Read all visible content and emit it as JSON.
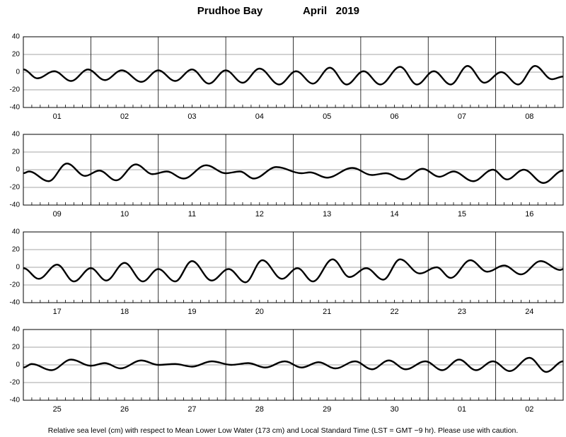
{
  "title_left": "Prudhoe Bay",
  "title_right": "April   2019",
  "note": "Relative sea level (cm) with respect to Mean Lower Low Water (173 cm) and Local Standard Time (LST = GMT −9 hr). Please use with caution.",
  "chart_data": [
    {
      "type": "line",
      "categories": [
        "01",
        "02",
        "03",
        "04",
        "05",
        "06",
        "07",
        "08"
      ],
      "x": [
        0,
        5,
        11,
        17,
        23,
        29,
        35,
        42,
        48,
        54,
        60,
        66,
        72,
        78,
        84,
        91,
        97,
        103,
        109,
        115,
        121,
        127,
        134,
        140,
        146,
        152,
        158,
        164,
        170,
        176,
        182,
        188,
        192
      ],
      "values": [
        3,
        -7,
        1,
        -10,
        3,
        -9,
        2,
        -11,
        2,
        -10,
        3,
        -13,
        2,
        -12,
        4,
        -14,
        1,
        -13,
        5,
        -14,
        1,
        -14,
        6,
        -14,
        1,
        -14,
        7,
        -12,
        0,
        -14,
        7,
        -8,
        -5
      ],
      "xlim": [
        0,
        192
      ],
      "xticks": [
        24,
        48,
        72,
        96,
        120,
        144,
        168
      ],
      "ylim": [
        -40,
        40
      ],
      "yticks": [
        -40,
        -20,
        0,
        20,
        40
      ],
      "grid": true,
      "color": "#000000"
    },
    {
      "type": "line",
      "categories": [
        "09",
        "10",
        "11",
        "12",
        "13",
        "14",
        "15",
        "16"
      ],
      "x": [
        0,
        2,
        9,
        15.5,
        22,
        27,
        33,
        40,
        46,
        51,
        57,
        65,
        72,
        77,
        82,
        90,
        99,
        102,
        108,
        117,
        124,
        129,
        135,
        142,
        148,
        153,
        160,
        167,
        172,
        178,
        185,
        192
      ],
      "values": [
        -4,
        -2,
        -13,
        7,
        -7,
        -1,
        -12,
        6,
        -5,
        -2,
        -10,
        5,
        -4,
        -2,
        -10,
        3,
        -4,
        -3,
        -9,
        2,
        -6,
        -4,
        -11,
        1,
        -8,
        -2,
        -13,
        0,
        -11,
        0,
        -15,
        -1
      ],
      "xlim": [
        0,
        192
      ],
      "xticks": [
        24,
        48,
        72,
        96,
        120,
        144,
        168
      ],
      "ylim": [
        -40,
        40
      ],
      "yticks": [
        -40,
        -20,
        0,
        20,
        40
      ],
      "grid": true,
      "color": "#000000"
    },
    {
      "type": "line",
      "categories": [
        "17",
        "18",
        "19",
        "20",
        "21",
        "22",
        "23",
        "24"
      ],
      "x": [
        0,
        5.5,
        12,
        18,
        24,
        29.5,
        36,
        42.5,
        48,
        54,
        60,
        67,
        73,
        79,
        85,
        92,
        97.5,
        103,
        110,
        116,
        122,
        128,
        134,
        141,
        147,
        152,
        159,
        165,
        171,
        177,
        184,
        191,
        192
      ],
      "values": [
        -1,
        -13,
        3,
        -16,
        -1,
        -15,
        5,
        -16,
        -2,
        -16,
        7,
        -15,
        -2,
        -17,
        8,
        -13,
        -1,
        -16,
        9,
        -11,
        -1,
        -14,
        9,
        -7,
        0,
        -12,
        8,
        -5,
        2,
        -8,
        7,
        -3,
        -2
      ],
      "xlim": [
        0,
        192
      ],
      "xticks": [
        24,
        48,
        72,
        96,
        120,
        144,
        168
      ],
      "ylim": [
        -40,
        40
      ],
      "yticks": [
        -40,
        -20,
        0,
        20,
        40
      ],
      "grid": true,
      "color": "#000000"
    },
    {
      "type": "line",
      "categories": [
        "25",
        "26",
        "27",
        "28",
        "29",
        "30",
        "01",
        "02"
      ],
      "x": [
        0,
        3,
        10,
        17,
        24,
        29,
        34.5,
        42,
        48,
        54,
        60,
        67,
        74,
        80,
        86,
        93,
        99,
        105,
        111,
        118,
        124,
        130,
        136,
        143,
        149,
        155,
        161,
        167,
        173,
        180,
        186,
        192
      ],
      "values": [
        -3,
        1,
        -6,
        6,
        -1,
        2,
        -4,
        5,
        0,
        1,
        -2,
        4,
        0,
        2,
        -3,
        4,
        -3,
        3,
        -4,
        4,
        -5,
        5,
        -5,
        4,
        -6,
        6,
        -6,
        4,
        -7,
        8,
        -8,
        4
      ],
      "xlim": [
        0,
        192
      ],
      "xticks": [
        24,
        48,
        72,
        96,
        120,
        144,
        168
      ],
      "ylim": [
        -40,
        40
      ],
      "yticks": [
        -40,
        -20,
        0,
        20,
        40
      ],
      "grid": true,
      "color": "#000000"
    }
  ]
}
